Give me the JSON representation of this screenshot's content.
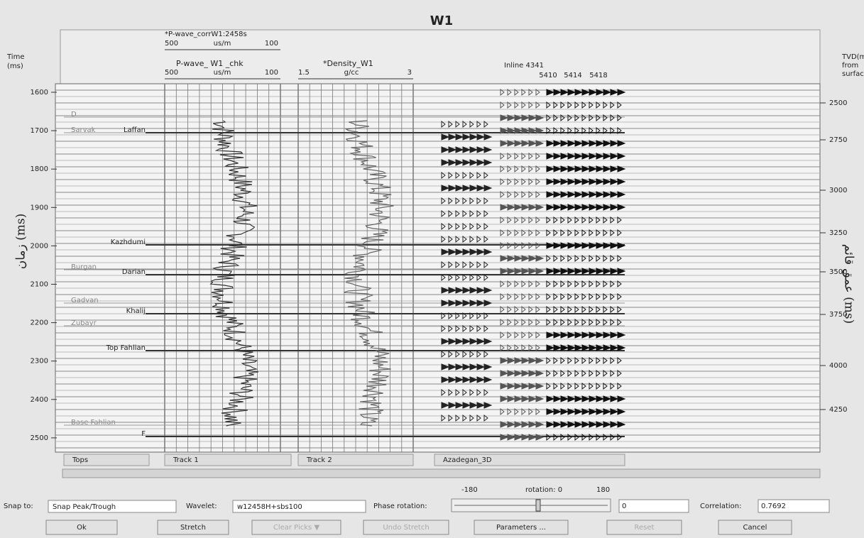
{
  "header": {
    "title": "W1"
  },
  "left_axis": {
    "label": [
      "Time",
      "(ms)"
    ],
    "rotated_label": "زمان (ms)",
    "ticks": [
      1600,
      1700,
      1800,
      1900,
      2000,
      2100,
      2200,
      2300,
      2400,
      2500
    ]
  },
  "right_axis": {
    "label": [
      "TVD(m)",
      "from",
      "surface"
    ],
    "rotated_label": "عمق قائم (ms)",
    "ticks": [
      2500,
      2750,
      3000,
      3250,
      3500,
      3750,
      4000,
      4250
    ]
  },
  "track_headers": {
    "pwave_corr": "*P-wave_corrW1:2458s",
    "pwave_corr_scale": [
      "500",
      "us/m",
      "100"
    ],
    "pwave": "P-wave_ W1 _chk",
    "pwave_scale": [
      "500",
      "us/m",
      "100"
    ],
    "density": "*Density_W1",
    "density_scale": [
      "1.5",
      "g/cc",
      "3"
    ],
    "inline": "Inline 4341",
    "traces": [
      "5410",
      "5414",
      "5418"
    ]
  },
  "tops": [
    "D",
    "Sarvak",
    "Laffan",
    "Kazhdumi",
    "Burgan",
    "Darian",
    "Gadvan",
    "Khalij",
    "Zubayr",
    "Top Fahlian",
    "Base Fahlian",
    "F"
  ],
  "tabs": [
    "Tops",
    "Track 1",
    "Track 2",
    "Azadegan_3D"
  ],
  "controls": {
    "snap_label": "Snap to:",
    "snap_value": "Snap Peak/Trough",
    "wavelet_label": "Wavelet:",
    "wavelet_value": "w12458H+sbs100",
    "phase_label": "Phase rotation:",
    "slider_min": "-180",
    "slider_caption": "rotation: 0",
    "slider_max": "180",
    "phase_value": "0",
    "correlation_label": "Correlation:",
    "correlation_value": "0.7692"
  },
  "buttons": [
    "Ok",
    "Stretch",
    "Clear Picks ▼",
    "Undo Stretch",
    "Parameters ...",
    "Reset",
    "Cancel"
  ]
}
